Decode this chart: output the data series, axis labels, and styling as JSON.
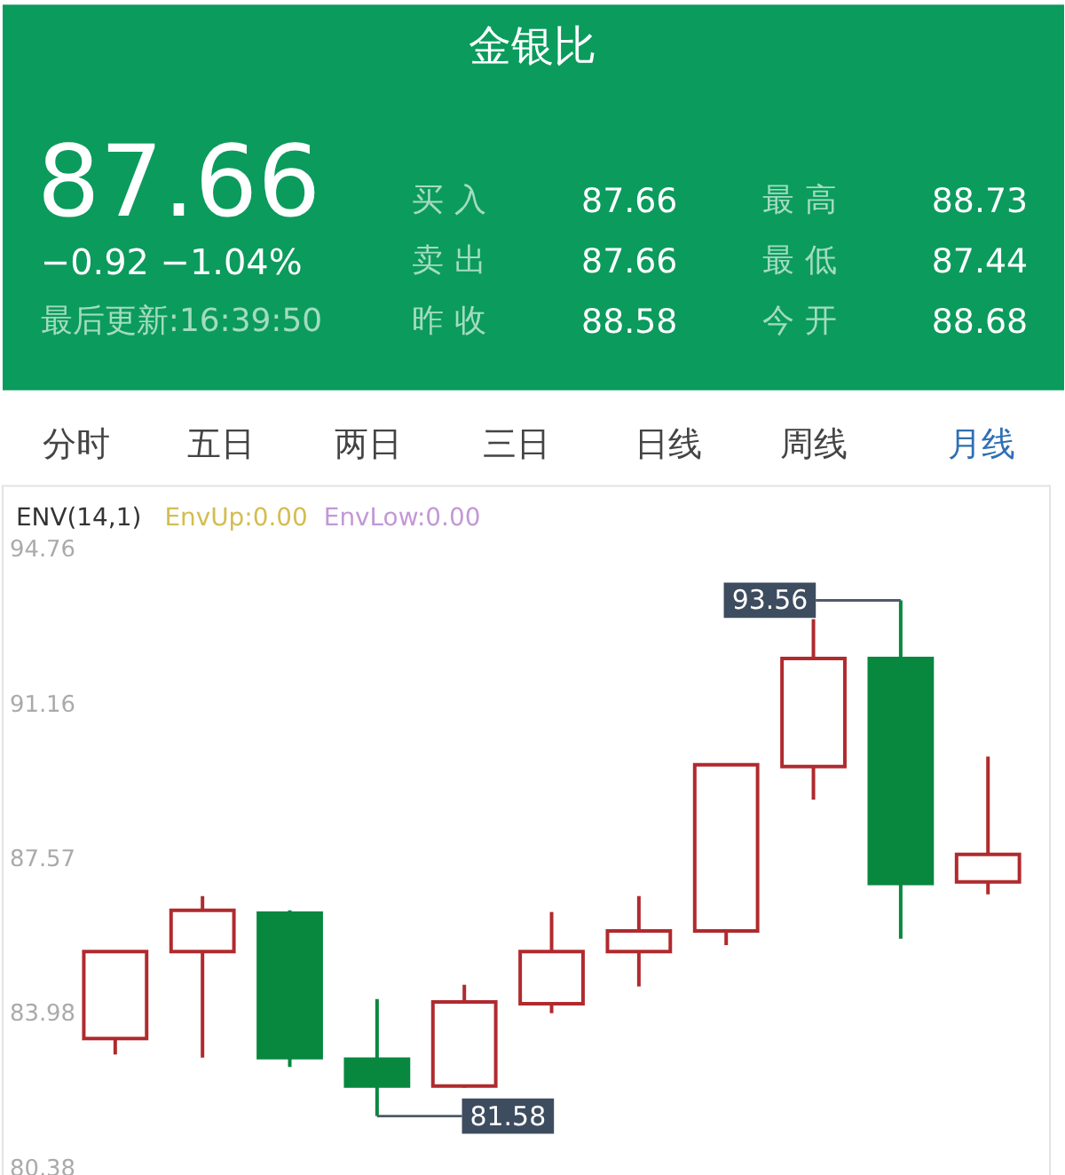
{
  "chart_data": {
    "type": "candlestick",
    "title": "金银比",
    "categories": [
      null,
      null,
      null,
      null,
      null,
      null,
      null,
      null,
      null,
      null,
      null
    ],
    "ohlc": [
      [
        83.38,
        85.4,
        83.01,
        85.4
      ],
      [
        85.4,
        86.69,
        82.94,
        86.36
      ],
      [
        86.29,
        86.36,
        82.72,
        82.94
      ],
      [
        82.9,
        84.3,
        81.58,
        82.28
      ],
      [
        82.28,
        84.63,
        82.24,
        84.23
      ],
      [
        84.19,
        86.32,
        83.97,
        85.4
      ],
      [
        85.4,
        86.69,
        84.59,
        85.88
      ],
      [
        85.88,
        89.74,
        85.55,
        89.74
      ],
      [
        89.7,
        93.12,
        88.93,
        92.21
      ],
      [
        92.21,
        93.56,
        85.7,
        86.98
      ],
      [
        87.02,
        89.93,
        86.73,
        87.66
      ]
    ],
    "colors": [
      "#b02a2e",
      "#b02a2e",
      "#08873f",
      "#08873f",
      "#b02a2e",
      "#b02a2e",
      "#b02a2e",
      "#b02a2e",
      "#b02a2e",
      "#08873f",
      "#b02a2e"
    ],
    "ylim": [
      80.38,
      94.76
    ],
    "yticks": [
      80.38,
      83.98,
      87.57,
      91.16,
      94.76
    ],
    "tick_labels": "y",
    "annotations": [
      "87.66",
      "−0.92 −1.04%",
      "最后更新:16:39:50",
      "买 入",
      "87.66",
      "最 高",
      "88.73",
      "卖 出",
      "87.66",
      "最 低",
      "87.44",
      "昨 收",
      "88.58",
      "今 开",
      "88.68",
      "分时",
      "五日",
      "两日",
      "三日",
      "日线",
      "周线",
      "月线",
      "ENV(14,1)",
      "EnvUp:0.00",
      "EnvLow:0.00",
      "93.56",
      "81.58"
    ]
  }
}
